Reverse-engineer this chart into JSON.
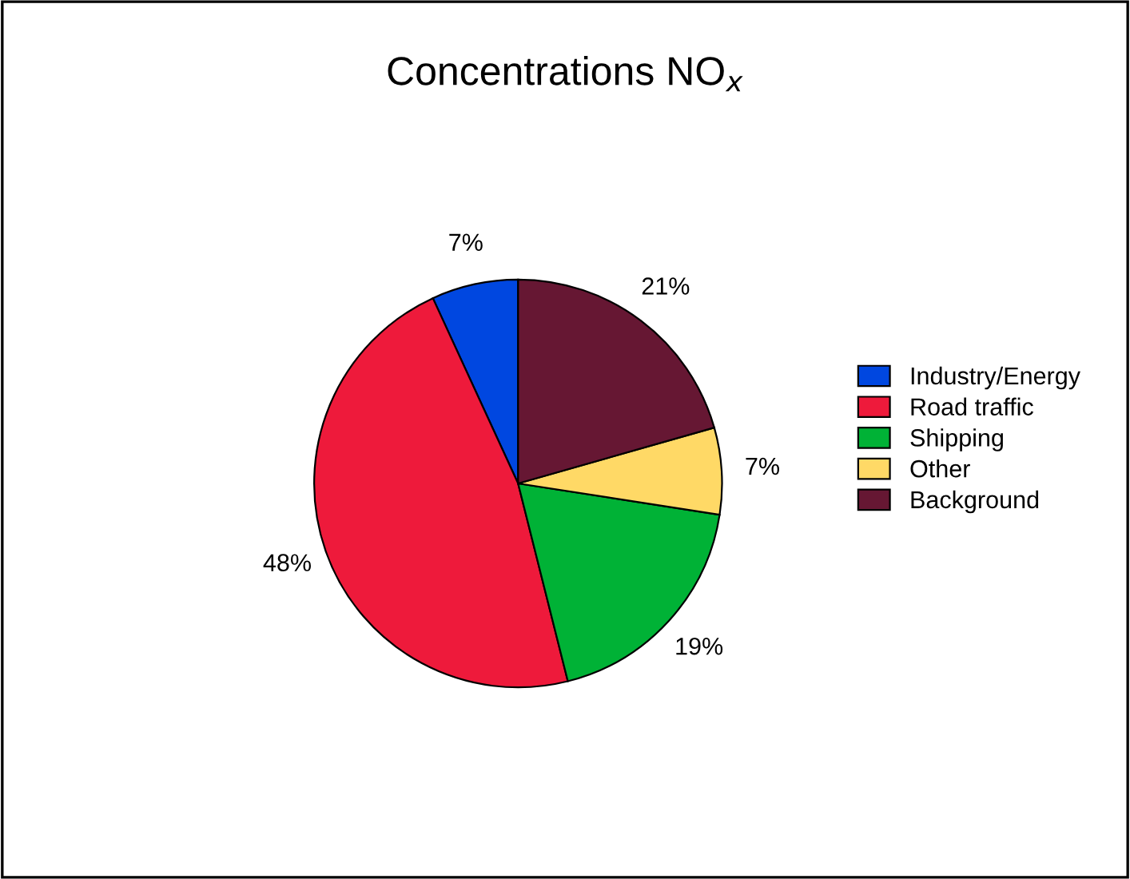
{
  "chart_data": {
    "type": "pie",
    "title": "Concentrations NO$_{x}$",
    "categories": [
      "Industry/Energy",
      "Road traffic",
      "Shipping",
      "Other",
      "Background"
    ],
    "values": [
      7,
      48,
      19,
      7,
      21
    ],
    "colors": [
      "#0047e0",
      "#ee1a3b",
      "#00b236",
      "#ffd966",
      "#661733"
    ],
    "value_labels": [
      "7%",
      "48%",
      "19%",
      "7%",
      "21%"
    ],
    "legend": "right"
  }
}
